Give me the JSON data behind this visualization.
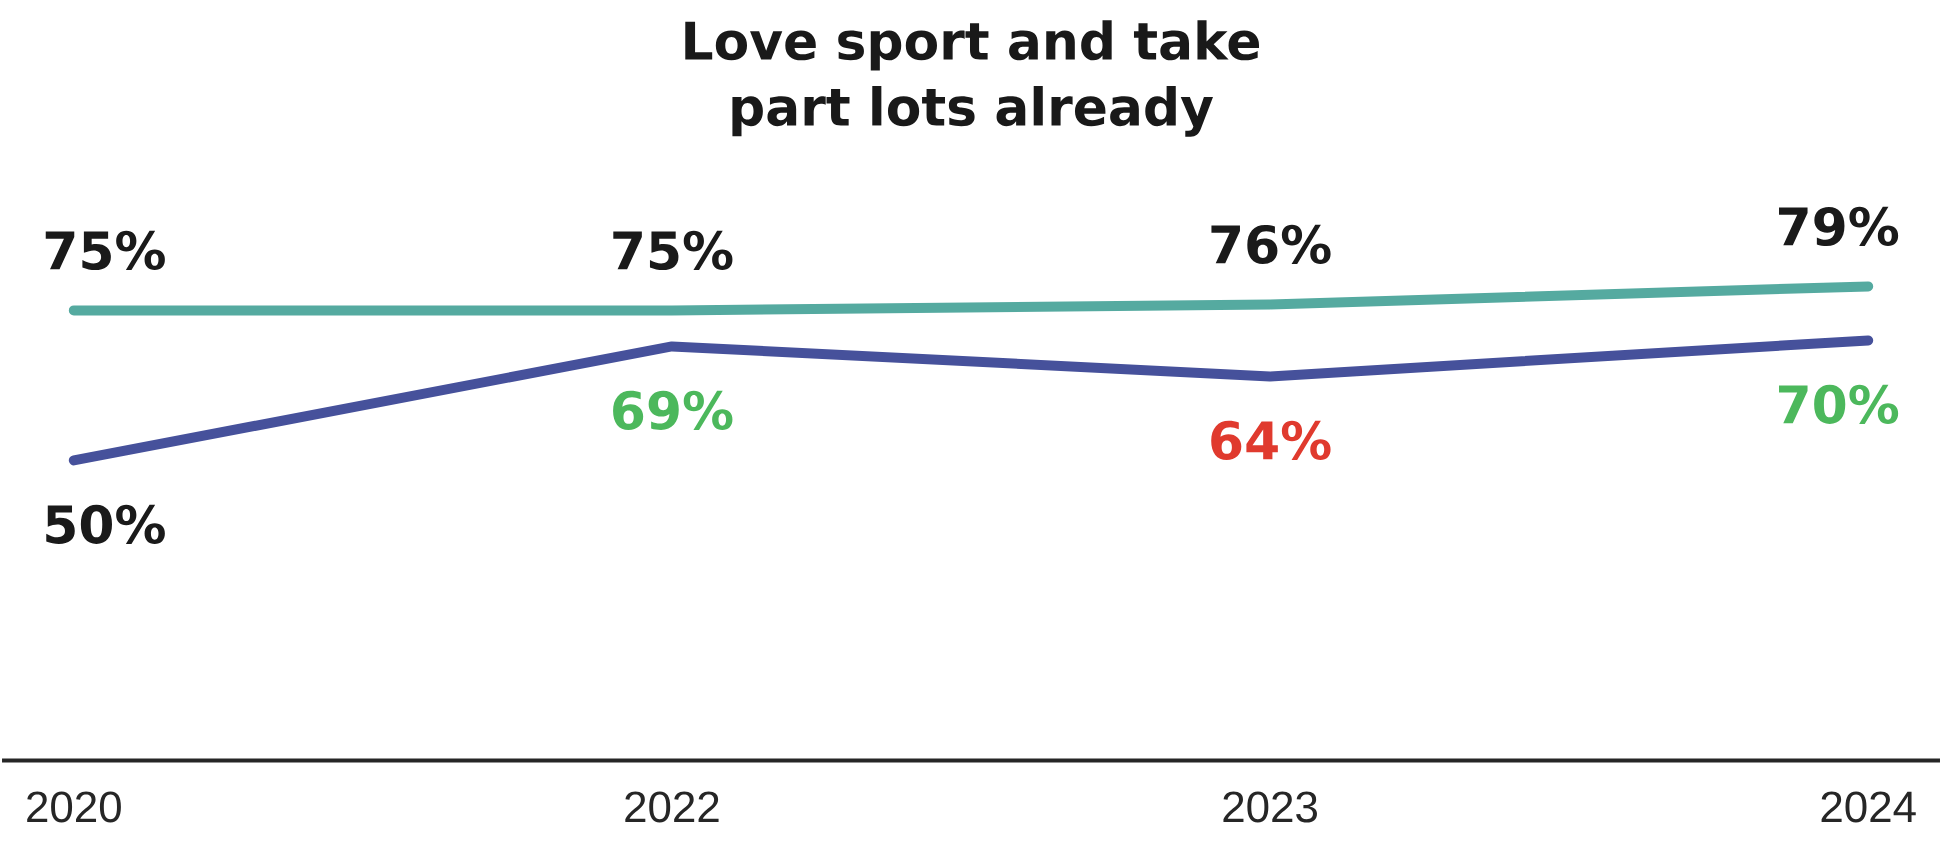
{
  "chart_data": {
    "type": "line",
    "title": "Love sport and take part lots already",
    "categories": [
      "2020",
      "2022",
      "2023",
      "2024"
    ],
    "series": [
      {
        "color": "#55aaa0",
        "values": [
          75,
          75,
          76,
          79
        ],
        "value_labels": [
          "75%",
          "75%",
          "76%",
          "79%"
        ]
      },
      {
        "color": "#46519b",
        "values": [
          50,
          69,
          64,
          70
        ],
        "value_labels": [
          "50%",
          "69%",
          "64%",
          "70%"
        ]
      }
    ],
    "grid": false,
    "marker": "none",
    "line_style": "solid",
    "tick_labels": "x"
  }
}
